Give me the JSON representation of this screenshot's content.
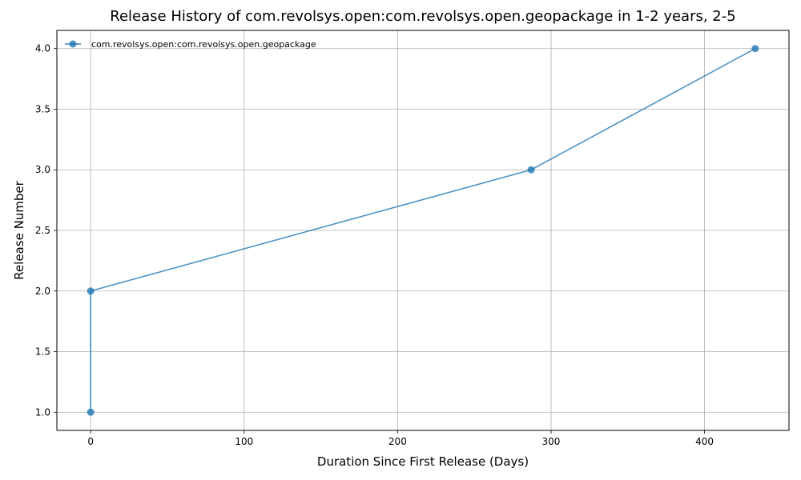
{
  "chart_data": {
    "type": "line",
    "title": "Release History of com.revolsys.open:com.revolsys.open.geopackage in 1-2 years, 2-5",
    "xlabel": "Duration Since First Release (Days)",
    "ylabel": "Release Number",
    "xlim": [
      -22,
      455
    ],
    "ylim": [
      0.85,
      4.15
    ],
    "xticks": [
      0,
      100,
      200,
      300,
      400
    ],
    "yticks": [
      1.0,
      1.5,
      2.0,
      2.5,
      3.0,
      3.5,
      4.0
    ],
    "xtick_labels": [
      "0",
      "100",
      "200",
      "300",
      "400"
    ],
    "ytick_labels": [
      "1.0",
      "1.5",
      "2.0",
      "2.5",
      "3.0",
      "3.5",
      "4.0"
    ],
    "grid": true,
    "legend_position": "top-left",
    "series": [
      {
        "name": "com.revolsys.open:com.revolsys.open.geopackage",
        "color": "#1f77b4",
        "marker": "circle",
        "x": [
          0,
          0,
          287,
          433
        ],
        "y": [
          1,
          2,
          3,
          4
        ]
      }
    ]
  }
}
